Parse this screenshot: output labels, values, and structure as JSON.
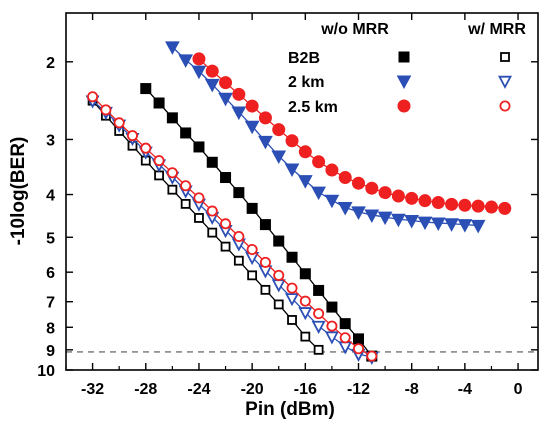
{
  "chart_data": {
    "type": "scatter",
    "xlabel": "Pin (dBm)",
    "ylabel": "-10log(BER)",
    "xlim": [
      -34,
      1.5
    ],
    "ylim": [
      10,
      1.55
    ],
    "y_scale": "log",
    "x_ticks": [
      -32,
      -28,
      -24,
      -20,
      -16,
      -12,
      -8,
      -4,
      0
    ],
    "y_ticks": [
      2,
      3,
      4,
      5,
      6,
      7,
      8,
      9,
      10
    ],
    "threshold_line": {
      "y": 9.1,
      "style": "dashed"
    },
    "legend": {
      "placement": "top-right",
      "column_headers": [
        "w/o MRR",
        "w/ MRR"
      ],
      "row_labels": [
        "B2B",
        "2 km",
        "2.5 km"
      ]
    },
    "series": [
      {
        "name": "B2B",
        "mrr": "w/o MRR",
        "marker": "square-filled",
        "color": "#000000",
        "x": [
          -28,
          -27,
          -26,
          -25,
          -24,
          -23,
          -22,
          -21,
          -20,
          -19,
          -18,
          -17,
          -16,
          -15,
          -14,
          -13,
          -12,
          -11
        ],
        "y": [
          2.3,
          2.48,
          2.68,
          2.9,
          3.12,
          3.38,
          3.66,
          3.96,
          4.3,
          4.68,
          5.1,
          5.55,
          6.05,
          6.6,
          7.2,
          7.85,
          8.5,
          9.3
        ]
      },
      {
        "name": "2 km",
        "mrr": "w/o MRR",
        "marker": "triangle-down-filled",
        "color": "#2b4fb5",
        "x": [
          -26,
          -25,
          -24,
          -23,
          -22,
          -21,
          -20,
          -19,
          -18,
          -17,
          -16,
          -15,
          -14,
          -13,
          -12,
          -11,
          -10,
          -9,
          -8,
          -7,
          -6,
          -5,
          -4,
          -3
        ],
        "y": [
          1.85,
          1.98,
          2.1,
          2.25,
          2.42,
          2.6,
          2.8,
          3.03,
          3.27,
          3.5,
          3.72,
          3.95,
          4.12,
          4.28,
          4.38,
          4.45,
          4.5,
          4.55,
          4.58,
          4.62,
          4.64,
          4.66,
          4.68,
          4.7
        ]
      },
      {
        "name": "2.5 km",
        "mrr": "w/o MRR",
        "marker": "circle-filled",
        "color": "#ee2020",
        "x": [
          -24,
          -23,
          -22,
          -21,
          -20,
          -19,
          -18,
          -17,
          -16,
          -15,
          -14,
          -13,
          -12,
          -11,
          -10,
          -9,
          -8,
          -7,
          -6,
          -5,
          -4,
          -3,
          -2,
          -1
        ],
        "y": [
          1.97,
          2.1,
          2.23,
          2.37,
          2.52,
          2.68,
          2.85,
          3.02,
          3.2,
          3.37,
          3.52,
          3.66,
          3.77,
          3.87,
          3.96,
          4.03,
          4.08,
          4.13,
          4.17,
          4.21,
          4.23,
          4.25,
          4.27,
          4.3
        ]
      },
      {
        "name": "B2B",
        "mrr": "w/ MRR",
        "marker": "square-open",
        "color": "#000000",
        "x": [
          -32,
          -31,
          -30,
          -29,
          -28,
          -27,
          -26,
          -25,
          -24,
          -23,
          -22,
          -21,
          -20,
          -19,
          -18,
          -17,
          -16,
          -15
        ],
        "y": [
          2.45,
          2.65,
          2.87,
          3.1,
          3.35,
          3.62,
          3.9,
          4.2,
          4.52,
          4.88,
          5.25,
          5.65,
          6.1,
          6.58,
          7.1,
          7.7,
          8.4,
          9.0
        ]
      },
      {
        "name": "2 km",
        "mrr": "w/ MRR",
        "marker": "triangle-down-open",
        "color": "#2b4fb5",
        "x": [
          -32,
          -31,
          -30,
          -29,
          -28,
          -27,
          -26,
          -25,
          -24,
          -23,
          -22,
          -21,
          -20,
          -19,
          -18,
          -17,
          -16,
          -15,
          -14,
          -13,
          -12,
          -11
        ],
        "y": [
          2.45,
          2.6,
          2.78,
          2.98,
          3.2,
          3.42,
          3.65,
          3.92,
          4.2,
          4.5,
          4.82,
          5.17,
          5.55,
          5.95,
          6.4,
          6.88,
          7.4,
          7.95,
          8.4,
          8.85,
          9.2,
          9.35
        ]
      },
      {
        "name": "2.5 km",
        "mrr": "w/ MRR",
        "marker": "circle-open",
        "color": "#ee2020",
        "x": [
          -32,
          -31,
          -30,
          -29,
          -28,
          -27,
          -26,
          -25,
          -24,
          -23,
          -22,
          -21,
          -20,
          -19,
          -18,
          -17,
          -16,
          -15,
          -14,
          -13,
          -12,
          -11
        ],
        "y": [
          2.4,
          2.57,
          2.75,
          2.94,
          3.14,
          3.35,
          3.57,
          3.82,
          4.07,
          4.36,
          4.66,
          4.98,
          5.33,
          5.7,
          6.1,
          6.52,
          6.98,
          7.45,
          7.95,
          8.45,
          8.95,
          9.3
        ]
      }
    ]
  }
}
